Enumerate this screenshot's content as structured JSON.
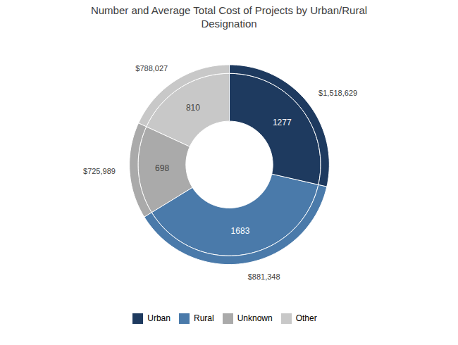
{
  "chart_data": {
    "type": "pie",
    "title": "Number and Average Total Cost of Projects by Urban/Rural\nDesignation",
    "categories": [
      "Urban",
      "Rural",
      "Unknown",
      "Other"
    ],
    "values": [
      1277,
      1683,
      698,
      810
    ],
    "data_labels": true,
    "avg_costs": [
      1518629,
      881348,
      725989,
      788027
    ],
    "avg_cost_labels": [
      "$1,518,629",
      "$881,348",
      "$725,989",
      "$788,027"
    ],
    "colors": [
      "#1e3a5f",
      "#4a7aaa",
      "#aaaaaa",
      "#c8c8c8"
    ],
    "legend": "bottom"
  }
}
